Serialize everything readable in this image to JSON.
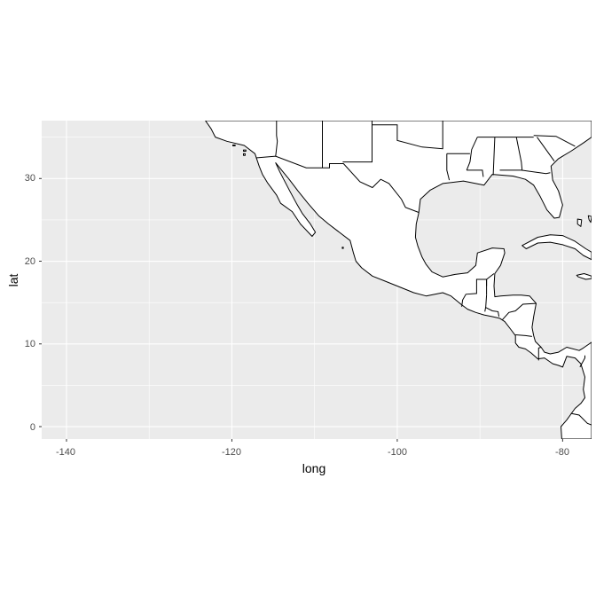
{
  "chart_data": {
    "type": "map",
    "xlabel": "long",
    "ylabel": "lat",
    "xlim": [
      -143,
      -76.5
    ],
    "ylim": [
      -1.5,
      37
    ],
    "x_ticks": [
      -140,
      -120,
      -100,
      -80
    ],
    "x_minor": [
      -130,
      -110,
      -90
    ],
    "y_ticks": [
      0,
      10,
      20,
      30
    ],
    "y_minor": [
      5,
      15,
      25,
      35
    ],
    "x_tick_labels": [
      "-140",
      "-120",
      "-100",
      "-80"
    ],
    "y_tick_labels": [
      "0",
      "10",
      "20",
      "30"
    ],
    "grid": true,
    "panel_background": "#ebebeb",
    "grid_color": "#ffffff",
    "land_fill": "#ffffff",
    "outline_color": "#000000",
    "regions": [
      {
        "name": "north-america",
        "points": [
          [
            -123.2,
            37
          ],
          [
            -122.5,
            36
          ],
          [
            -122.0,
            35
          ],
          [
            -120.6,
            34.5
          ],
          [
            -118.5,
            34
          ],
          [
            -117.2,
            33
          ],
          [
            -116.7,
            31.5
          ],
          [
            -116.3,
            30.5
          ],
          [
            -115.7,
            29.5
          ],
          [
            -114.6,
            28
          ],
          [
            -114.1,
            27
          ],
          [
            -112.7,
            26
          ],
          [
            -111.7,
            24.5
          ],
          [
            -110.3,
            23
          ],
          [
            -109.9,
            23.5
          ],
          [
            -110.5,
            24.5
          ],
          [
            -111.5,
            25.8
          ],
          [
            -112.2,
            27
          ],
          [
            -113.0,
            28.5
          ],
          [
            -114.2,
            30.8
          ],
          [
            -114.7,
            31.9
          ],
          [
            -113.0,
            29.8
          ],
          [
            -112.0,
            28.5
          ],
          [
            -110.8,
            27
          ],
          [
            -109.5,
            25.5
          ],
          [
            -108.3,
            24.5
          ],
          [
            -107.0,
            23.5
          ],
          [
            -105.7,
            22.5
          ],
          [
            -105.3,
            21
          ],
          [
            -105.0,
            20
          ],
          [
            -104.3,
            19.2
          ],
          [
            -103.0,
            18.2
          ],
          [
            -101.5,
            17.6
          ],
          [
            -100.0,
            17
          ],
          [
            -98.0,
            16.2
          ],
          [
            -96.5,
            15.8
          ],
          [
            -94.5,
            16.2
          ],
          [
            -93.5,
            15.8
          ],
          [
            -92.3,
            14.8
          ],
          [
            -91.5,
            14.2
          ],
          [
            -90.5,
            13.8
          ],
          [
            -89.5,
            13.5
          ],
          [
            -88.5,
            13.3
          ],
          [
            -87.6,
            13.1
          ],
          [
            -87.0,
            12.7
          ],
          [
            -86.3,
            11.8
          ],
          [
            -85.7,
            11.0
          ],
          [
            -85.7,
            10.1
          ],
          [
            -85.3,
            9.6
          ],
          [
            -84.5,
            9.4
          ],
          [
            -83.8,
            8.9
          ],
          [
            -83.0,
            8.2
          ],
          [
            -82.2,
            8.3
          ],
          [
            -81.2,
            7.6
          ],
          [
            -80.5,
            7.4
          ],
          [
            -80.0,
            7.2
          ],
          [
            -79.5,
            8.5
          ],
          [
            -78.5,
            8.3
          ],
          [
            -77.8,
            7.6
          ],
          [
            -77.3,
            6.0
          ],
          [
            -77.5,
            4.5
          ],
          [
            -77.3,
            3.5
          ],
          [
            -77.8,
            2.8
          ],
          [
            -78.5,
            2.2
          ],
          [
            -79.0,
            1.5
          ],
          [
            -79.5,
            0.8
          ],
          [
            -80.2,
            0.0
          ],
          [
            -80.1,
            -1.5
          ],
          [
            -76.5,
            -1.5
          ],
          [
            -76.5,
            10.2
          ],
          [
            -77.5,
            9.5
          ],
          [
            -78.0,
            9.2
          ],
          [
            -79.5,
            9.6
          ],
          [
            -80.5,
            9.0
          ],
          [
            -81.5,
            8.8
          ],
          [
            -82.2,
            9.0
          ],
          [
            -82.6,
            9.6
          ],
          [
            -83.3,
            10.3
          ],
          [
            -83.5,
            11.0
          ],
          [
            -83.7,
            12.0
          ],
          [
            -83.5,
            13.3
          ],
          [
            -83.2,
            14.9
          ],
          [
            -84.0,
            15.8
          ],
          [
            -85.0,
            15.9
          ],
          [
            -86.0,
            15.9
          ],
          [
            -87.5,
            15.8
          ],
          [
            -88.2,
            15.7
          ],
          [
            -88.3,
            17.0
          ],
          [
            -88.2,
            18.5
          ],
          [
            -87.5,
            19.5
          ],
          [
            -87.0,
            21.0
          ],
          [
            -87.1,
            21.5
          ],
          [
            -88.5,
            21.6
          ],
          [
            -90.3,
            21.0
          ],
          [
            -90.5,
            19.5
          ],
          [
            -91.5,
            18.6
          ],
          [
            -93.0,
            18.4
          ],
          [
            -94.5,
            18.1
          ],
          [
            -95.8,
            18.7
          ],
          [
            -96.5,
            19.6
          ],
          [
            -97.0,
            20.5
          ],
          [
            -97.5,
            21.8
          ],
          [
            -97.8,
            22.9
          ],
          [
            -97.7,
            24.5
          ],
          [
            -97.4,
            25.8
          ],
          [
            -97.2,
            27.5
          ],
          [
            -96.0,
            28.6
          ],
          [
            -94.5,
            29.4
          ],
          [
            -92.0,
            29.7
          ],
          [
            -89.5,
            29.2
          ],
          [
            -88.5,
            30.5
          ],
          [
            -86.0,
            30.3
          ],
          [
            -84.5,
            29.9
          ],
          [
            -83.5,
            29.2
          ],
          [
            -82.7,
            27.8
          ],
          [
            -81.9,
            26.2
          ],
          [
            -81.0,
            25.2
          ],
          [
            -80.4,
            25.3
          ],
          [
            -80.0,
            26.8
          ],
          [
            -80.5,
            28.5
          ],
          [
            -81.2,
            29.8
          ],
          [
            -81.4,
            31.5
          ],
          [
            -80.5,
            32.4
          ],
          [
            -79.0,
            33.3
          ],
          [
            -77.5,
            34.3
          ],
          [
            -76.5,
            35.0
          ],
          [
            -76.5,
            37
          ]
        ]
      },
      {
        "name": "cuba",
        "points": [
          [
            -84.9,
            21.9
          ],
          [
            -83.0,
            22.9
          ],
          [
            -81.5,
            23.2
          ],
          [
            -80.0,
            23.1
          ],
          [
            -78.5,
            22.4
          ],
          [
            -77.2,
            21.5
          ],
          [
            -76.5,
            21.1
          ],
          [
            -76.5,
            20.2
          ],
          [
            -77.5,
            20.7
          ],
          [
            -78.5,
            21.5
          ],
          [
            -80.0,
            22.0
          ],
          [
            -81.5,
            22.3
          ],
          [
            -83.0,
            22.2
          ],
          [
            -84.4,
            21.5
          ]
        ]
      },
      {
        "name": "jamaica",
        "points": [
          [
            -78.3,
            18.3
          ],
          [
            -77.4,
            18.5
          ],
          [
            -76.5,
            18.2
          ],
          [
            -76.5,
            17.9
          ],
          [
            -77.2,
            17.8
          ],
          [
            -78.1,
            18.1
          ]
        ]
      },
      {
        "name": "bahamas-andros",
        "points": [
          [
            -78.2,
            25.1
          ],
          [
            -77.7,
            25.0
          ],
          [
            -77.8,
            24.2
          ],
          [
            -78.2,
            24.5
          ]
        ]
      },
      {
        "name": "bahamas-eleuthera",
        "points": [
          [
            -76.9,
            25.5
          ],
          [
            -76.5,
            25.4
          ],
          [
            -76.6,
            24.7
          ],
          [
            -76.8,
            25.0
          ]
        ]
      },
      {
        "name": "islas-marias",
        "points": [
          [
            -106.65,
            21.7
          ],
          [
            -106.52,
            21.7
          ],
          [
            -106.52,
            21.55
          ],
          [
            -106.65,
            21.55
          ]
        ]
      },
      {
        "name": "channel-island-1",
        "points": [
          [
            -119.9,
            34.05
          ],
          [
            -119.6,
            34.05
          ],
          [
            -119.6,
            33.95
          ],
          [
            -119.9,
            33.95
          ]
        ]
      },
      {
        "name": "channel-island-2",
        "points": [
          [
            -118.6,
            33.45
          ],
          [
            -118.3,
            33.45
          ],
          [
            -118.3,
            33.3
          ],
          [
            -118.6,
            33.3
          ]
        ]
      },
      {
        "name": "channel-island-3",
        "points": [
          [
            -118.6,
            33.0
          ],
          [
            -118.4,
            33.0
          ],
          [
            -118.4,
            32.8
          ],
          [
            -118.6,
            32.8
          ]
        ]
      }
    ],
    "borders": [
      {
        "name": "us-mexico",
        "points": [
          [
            -117.1,
            32.5
          ],
          [
            -114.7,
            32.7
          ],
          [
            -111.0,
            31.3
          ],
          [
            -108.2,
            31.3
          ],
          [
            -108.2,
            31.8
          ],
          [
            -106.5,
            31.8
          ],
          [
            -104.5,
            29.6
          ],
          [
            -103.0,
            28.9
          ],
          [
            -102.0,
            29.9
          ],
          [
            -101.0,
            29.4
          ],
          [
            -99.5,
            27.5
          ],
          [
            -99.0,
            26.5
          ],
          [
            -97.4,
            25.9
          ]
        ]
      },
      {
        "name": "guatemala-north",
        "points": [
          [
            -92.2,
            14.5
          ],
          [
            -92.1,
            15.3
          ],
          [
            -91.7,
            16.0
          ],
          [
            -90.4,
            16.1
          ],
          [
            -90.4,
            17.8
          ],
          [
            -89.2,
            17.8
          ],
          [
            -89.2,
            17.0
          ]
        ]
      },
      {
        "name": "belize",
        "points": [
          [
            -89.2,
            15.9
          ],
          [
            -89.2,
            17.8
          ],
          [
            -88.3,
            18.5
          ]
        ]
      },
      {
        "name": "guatemala-honduras",
        "points": [
          [
            -89.2,
            15.9
          ],
          [
            -89.3,
            14.5
          ],
          [
            -89.4,
            13.9
          ]
        ]
      },
      {
        "name": "honduras-elsalvador",
        "points": [
          [
            -89.3,
            14.4
          ],
          [
            -88.5,
            14.0
          ],
          [
            -87.8,
            13.9
          ],
          [
            -87.7,
            13.3
          ]
        ]
      },
      {
        "name": "honduras-nicaragua",
        "points": [
          [
            -87.3,
            12.9
          ],
          [
            -86.5,
            13.8
          ],
          [
            -85.7,
            14.0
          ],
          [
            -84.8,
            14.8
          ],
          [
            -83.2,
            14.9
          ]
        ]
      },
      {
        "name": "nicaragua-costarica",
        "points": [
          [
            -85.7,
            11.1
          ],
          [
            -84.5,
            11.0
          ],
          [
            -83.7,
            10.9
          ]
        ]
      },
      {
        "name": "costarica-panama",
        "points": [
          [
            -82.9,
            8.0
          ],
          [
            -82.9,
            9.5
          ],
          [
            -82.6,
            9.6
          ]
        ]
      },
      {
        "name": "panama-colombia",
        "points": [
          [
            -77.9,
            7.2
          ],
          [
            -77.3,
            8.3
          ],
          [
            -77.3,
            8.6
          ]
        ]
      },
      {
        "name": "colombia-ecuador",
        "points": [
          [
            -79.0,
            1.6
          ],
          [
            -78.0,
            1.4
          ],
          [
            -77.0,
            0.4
          ],
          [
            -76.5,
            0.2
          ]
        ]
      },
      {
        "name": "us-state-ca-az",
        "points": [
          [
            -114.7,
            32.7
          ],
          [
            -114.5,
            34.5
          ],
          [
            -114.6,
            35.2
          ],
          [
            -114.6,
            37
          ]
        ]
      },
      {
        "name": "us-state-az-nm",
        "points": [
          [
            -109.05,
            31.3
          ],
          [
            -109.05,
            37
          ]
        ]
      },
      {
        "name": "us-state-nm-tx",
        "points": [
          [
            -106.6,
            32.0
          ],
          [
            -103.05,
            32.0
          ],
          [
            -103.05,
            37
          ]
        ]
      },
      {
        "name": "us-state-ok",
        "points": [
          [
            -103.0,
            36.5
          ],
          [
            -100.0,
            36.5
          ],
          [
            -100.0,
            34.6
          ],
          [
            -97.0,
            33.8
          ],
          [
            -94.5,
            33.6
          ],
          [
            -94.5,
            37
          ]
        ]
      },
      {
        "name": "us-state-tx-la",
        "points": [
          [
            -94.0,
            33.0
          ],
          [
            -94.0,
            31.0
          ],
          [
            -93.7,
            29.8
          ]
        ]
      },
      {
        "name": "us-state-ar-la",
        "points": [
          [
            -94.0,
            33.0
          ],
          [
            -91.2,
            33.0
          ]
        ]
      },
      {
        "name": "us-state-la-ms",
        "points": [
          [
            -91.6,
            31.0
          ],
          [
            -89.7,
            31.0
          ],
          [
            -89.6,
            30.2
          ]
        ]
      },
      {
        "name": "us-state-ms-al",
        "points": [
          [
            -88.2,
            35.0
          ],
          [
            -88.4,
            30.4
          ]
        ]
      },
      {
        "name": "us-state-al-ga",
        "points": [
          [
            -85.6,
            35.0
          ],
          [
            -85.0,
            32.0
          ],
          [
            -84.9,
            31.0
          ]
        ]
      },
      {
        "name": "us-state-fl-north",
        "points": [
          [
            -87.6,
            31.0
          ],
          [
            -85.0,
            31.0
          ],
          [
            -82.0,
            30.6
          ],
          [
            -81.5,
            30.7
          ]
        ]
      },
      {
        "name": "us-state-ga-sc",
        "points": [
          [
            -83.1,
            35.0
          ],
          [
            -81.0,
            32.1
          ]
        ]
      },
      {
        "name": "us-state-nc-sc",
        "points": [
          [
            -83.5,
            35.2
          ],
          [
            -80.8,
            35.1
          ],
          [
            -78.5,
            33.9
          ]
        ]
      },
      {
        "name": "us-state-tn-south",
        "points": [
          [
            -90.3,
            35.0
          ],
          [
            -83.5,
            35.0
          ]
        ]
      },
      {
        "name": "us-state-ms-river",
        "points": [
          [
            -90.3,
            35.0
          ],
          [
            -91.0,
            33.5
          ],
          [
            -91.2,
            32.0
          ],
          [
            -91.6,
            31.0
          ]
        ]
      }
    ]
  }
}
